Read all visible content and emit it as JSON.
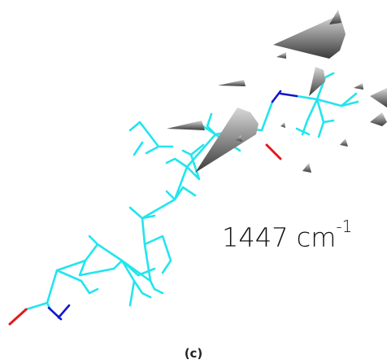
{
  "annotation": {
    "text": "1447 cm",
    "superscript": "-1"
  },
  "caption": "(c)"
}
